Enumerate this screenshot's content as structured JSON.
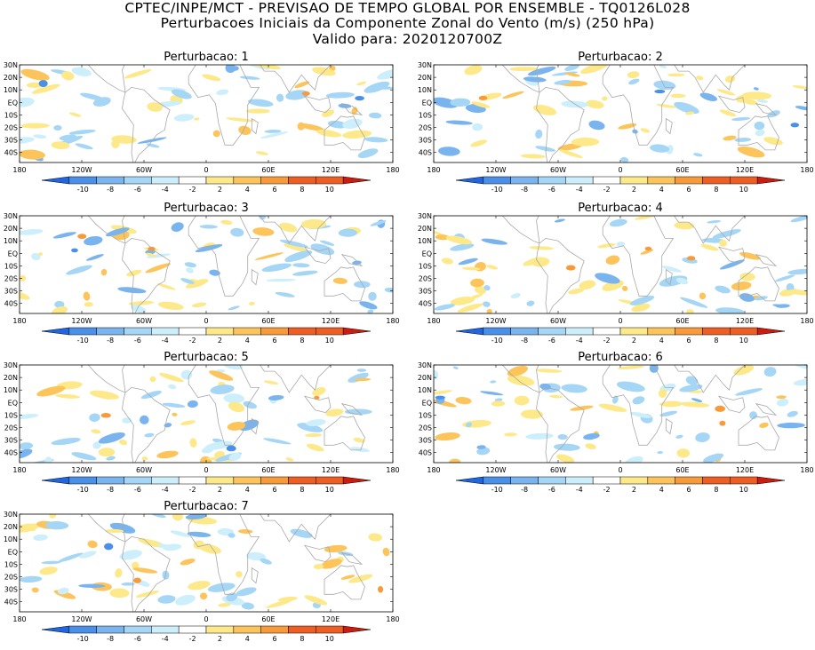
{
  "title": {
    "line1": "CPTEC/INPE/MCT - PREVISAO DE TEMPO GLOBAL POR ENSEMBLE - TQ0126L028",
    "line2": "Perturbacoes Iniciais da Componente Zonal do Vento (m/s) (250 hPa)",
    "line3": "Valido para: 2020120700Z"
  },
  "axes": {
    "lat_labels": [
      "30N",
      "20N",
      "10N",
      "EQ",
      "10S",
      "20S",
      "30S",
      "40S"
    ],
    "lon_labels": [
      "180",
      "120W",
      "60W",
      "0",
      "60E",
      "120E",
      "180"
    ],
    "lon_values": [
      -180,
      -120,
      -60,
      0,
      60,
      120,
      180
    ],
    "lat_values": [
      30,
      20,
      10,
      0,
      -10,
      -20,
      -30,
      -40
    ]
  },
  "colorbar": {
    "labels": [
      "-10",
      "-8",
      "-6",
      "-4",
      "-2",
      "2",
      "4",
      "6",
      "8",
      "10"
    ],
    "colors": [
      "#2166e0",
      "#4a90e8",
      "#7ab4ee",
      "#a6d6f5",
      "#cdeefb",
      "#ffffff",
      "#fde98a",
      "#fcc45a",
      "#f79a3a",
      "#ee5e22",
      "#cc1c10"
    ]
  },
  "panels": [
    {
      "title": "Perturbacao: 1"
    },
    {
      "title": "Perturbacao: 2"
    },
    {
      "title": "Perturbacao: 3"
    },
    {
      "title": "Perturbacao: 4"
    },
    {
      "title": "Perturbacao: 5"
    },
    {
      "title": "Perturbacao: 6"
    },
    {
      "title": "Perturbacao: 7"
    }
  ]
}
